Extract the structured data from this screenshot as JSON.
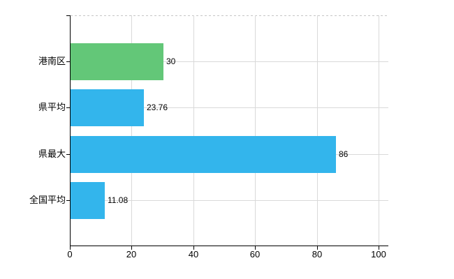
{
  "chart_data": {
    "type": "bar",
    "orientation": "horizontal",
    "title": "",
    "xlabel": "",
    "ylabel": "",
    "categories": [
      "港南区",
      "県平均",
      "県最大",
      "全国平均"
    ],
    "values": [
      30,
      23.76,
      86,
      11.08
    ],
    "value_labels": [
      "30",
      "23.76",
      "86",
      "11.08"
    ],
    "series": [
      {
        "name": "",
        "values": [
          30,
          23.76,
          86,
          11.08
        ]
      }
    ],
    "bar_colors": [
      "#63c778",
      "#33b5ec",
      "#33b5ec",
      "#33b5ec"
    ],
    "x_ticks": [
      0,
      20,
      40,
      60,
      80,
      100
    ],
    "x_tick_labels": [
      "0",
      "20",
      "40",
      "60",
      "80",
      "100"
    ],
    "xlim": [
      0,
      103
    ],
    "grid": "on",
    "legend": "none",
    "colors": {
      "axis": "#000000",
      "gridline": "#d9d9d9",
      "plot_top_dashed": "#c6c6c6",
      "label": "#000000",
      "background": "#ffffff",
      "bar_green": "#63c778",
      "bar_blue": "#33b5ec"
    }
  }
}
